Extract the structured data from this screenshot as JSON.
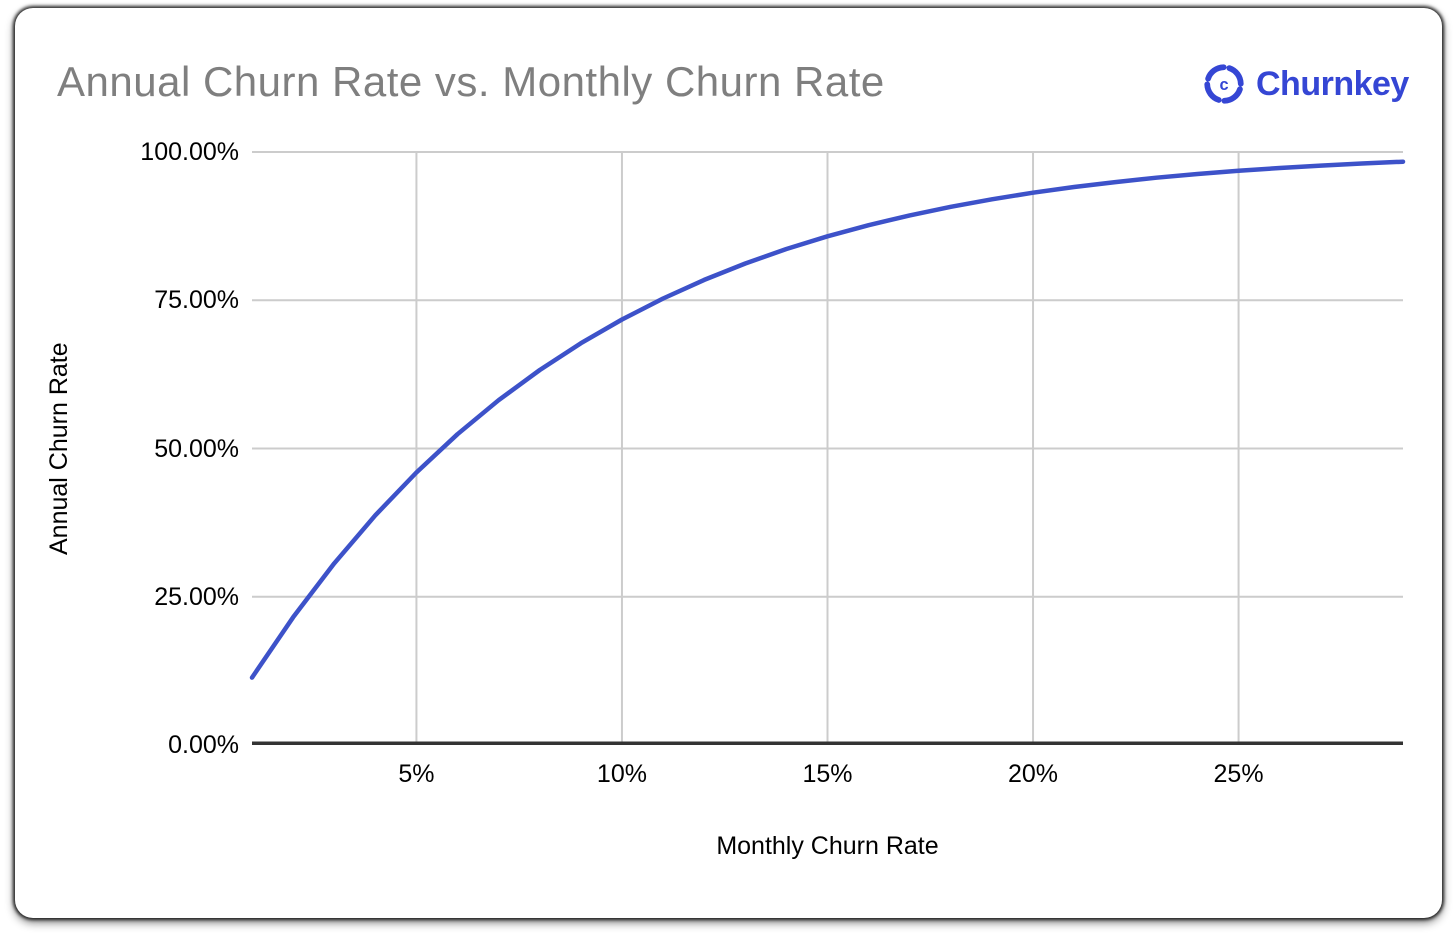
{
  "header": {
    "title": "Annual Churn Rate vs. Monthly Churn Rate",
    "brand": {
      "name": "Churnkey",
      "logo_icon": "churnkey-shutter-icon"
    }
  },
  "colors": {
    "brand_blue": "#3546d4",
    "line_blue": "#3d52c9",
    "title_gray": "#7f7f7f",
    "gridline": "#cccccc",
    "axis_line": "#333333",
    "tick_label": "#000000"
  },
  "chart_data": {
    "type": "line",
    "title": "Annual Churn Rate vs. Monthly Churn Rate",
    "xlabel": "Monthly Churn Rate",
    "ylabel": "Annual Churn Rate",
    "xlim": [
      1,
      29
    ],
    "ylim": [
      0,
      100
    ],
    "grid": true,
    "legend": "none",
    "x_ticks": [
      {
        "value": 5,
        "label": "5%"
      },
      {
        "value": 10,
        "label": "10%"
      },
      {
        "value": 15,
        "label": "15%"
      },
      {
        "value": 20,
        "label": "20%"
      },
      {
        "value": 25,
        "label": "25%"
      }
    ],
    "y_ticks": [
      {
        "value": 0,
        "label": "0.00%"
      },
      {
        "value": 25,
        "label": "25.00%"
      },
      {
        "value": 50,
        "label": "50.00%"
      },
      {
        "value": 75,
        "label": "75.00%"
      },
      {
        "value": 100,
        "label": "100.00%"
      }
    ],
    "series": [
      {
        "name": "Annual Churn Rate",
        "color": "#3d52c9",
        "x": [
          1,
          2,
          3,
          4,
          5,
          6,
          7,
          8,
          9,
          10,
          11,
          12,
          13,
          14,
          15,
          16,
          17,
          18,
          19,
          20,
          21,
          22,
          23,
          24,
          25,
          26,
          27,
          28,
          29
        ],
        "y": [
          11.36,
          21.53,
          30.62,
          38.73,
          45.96,
          52.41,
          58.15,
          63.23,
          67.75,
          71.76,
          75.3,
          78.43,
          81.2,
          83.64,
          85.78,
          87.66,
          89.31,
          90.76,
          92.02,
          93.13,
          94.09,
          94.93,
          95.66,
          96.29,
          96.83,
          97.3,
          97.71,
          98.06,
          98.36
        ]
      }
    ]
  }
}
